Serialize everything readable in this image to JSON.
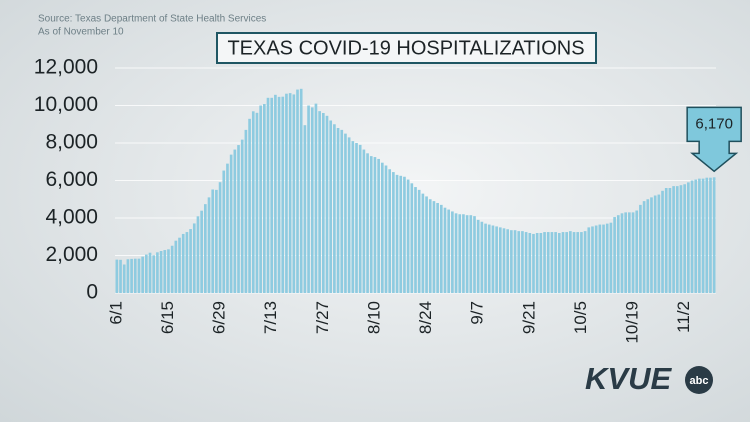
{
  "source": "Source: Texas Department of State Health Services",
  "as_of": "As of November 10",
  "logo": {
    "text": "KVUE",
    "network": "abc"
  },
  "chart_data": {
    "type": "bar",
    "title": "TEXAS COVID-19 HOSPITALIZATIONS",
    "color": "#8ecbe0",
    "grid": true,
    "ylim": [
      0,
      12000
    ],
    "yticks": [
      0,
      {
        "value": 2000,
        "label": "2,000"
      },
      {
        "value": 4000,
        "label": "4,000"
      },
      {
        "value": 6000,
        "label": "6,000"
      },
      {
        "value": 8000,
        "label": "8,000"
      },
      {
        "value": 10000,
        "label": "10,000"
      },
      {
        "value": 12000,
        "label": "12,000"
      }
    ],
    "categories": [
      "6/1",
      null,
      null,
      null,
      null,
      null,
      null,
      null,
      null,
      null,
      null,
      null,
      null,
      null,
      "6/15",
      null,
      null,
      null,
      null,
      null,
      null,
      null,
      null,
      null,
      null,
      null,
      null,
      null,
      "6/29",
      null,
      null,
      null,
      null,
      null,
      null,
      null,
      null,
      null,
      null,
      null,
      null,
      null,
      "7/13",
      null,
      null,
      null,
      null,
      null,
      null,
      null,
      null,
      null,
      null,
      null,
      null,
      null,
      "7/27",
      null,
      null,
      null,
      null,
      null,
      null,
      null,
      null,
      null,
      null,
      null,
      null,
      null,
      "8/10",
      null,
      null,
      null,
      null,
      null,
      null,
      null,
      null,
      null,
      null,
      null,
      null,
      null,
      "8/24",
      null,
      null,
      null,
      null,
      null,
      null,
      null,
      null,
      null,
      null,
      null,
      null,
      null,
      "9/7",
      null,
      null,
      null,
      null,
      null,
      null,
      null,
      null,
      null,
      null,
      null,
      null,
      null,
      "9/21",
      null,
      null,
      null,
      null,
      null,
      null,
      null,
      null,
      null,
      null,
      null,
      null,
      null,
      "10/5",
      null,
      null,
      null,
      null,
      null,
      null,
      null,
      null,
      null,
      null,
      null,
      null,
      null,
      "10/19",
      null,
      null,
      null,
      null,
      null,
      null,
      null,
      null,
      null,
      null,
      null,
      null,
      null,
      "11/2",
      null,
      null,
      null,
      null,
      null,
      null,
      null,
      null
    ],
    "values": [
      1780,
      1770,
      1520,
      1800,
      1820,
      1830,
      1830,
      1940,
      2050,
      2150,
      2010,
      2170,
      2240,
      2290,
      2330,
      2520,
      2790,
      2950,
      3150,
      3250,
      3410,
      3710,
      4090,
      4390,
      4740,
      5100,
      5520,
      5500,
      5910,
      6530,
      6900,
      7380,
      7650,
      7890,
      8180,
      8700,
      9290,
      9690,
      9610,
      10000,
      10080,
      10410,
      10410,
      10570,
      10460,
      10470,
      10630,
      10660,
      10590,
      10850,
      10890,
      8950,
      10000,
      9900,
      10100,
      9700,
      9600,
      9450,
      9200,
      9000,
      8800,
      8700,
      8500,
      8300,
      8100,
      8000,
      7900,
      7650,
      7450,
      7300,
      7250,
      7150,
      6950,
      6800,
      6600,
      6450,
      6300,
      6250,
      6200,
      6050,
      5850,
      5650,
      5500,
      5300,
      5150,
      5000,
      4900,
      4800,
      4700,
      4550,
      4450,
      4350,
      4250,
      4200,
      4200,
      4150,
      4150,
      4100,
      3900,
      3800,
      3700,
      3650,
      3600,
      3550,
      3500,
      3450,
      3400,
      3350,
      3350,
      3300,
      3300,
      3250,
      3200,
      3150,
      3200,
      3200,
      3250,
      3250,
      3250,
      3250,
      3200,
      3250,
      3250,
      3300,
      3250,
      3250,
      3250,
      3300,
      3500,
      3550,
      3600,
      3650,
      3650,
      3700,
      3750,
      4050,
      4150,
      4250,
      4300,
      4300,
      4300,
      4400,
      4700,
      4900,
      5000,
      5100,
      5200,
      5250,
      5450,
      5600,
      5600,
      5700,
      5700,
      5750,
      5800,
      5900,
      6000,
      6050,
      6100,
      6100,
      6150,
      6150,
      6170
    ],
    "value_labels": [
      null,
      null,
      null,
      null,
      null,
      null,
      null,
      null,
      null,
      null,
      null,
      null,
      null,
      null,
      null,
      null,
      null,
      null,
      null,
      null,
      null,
      null,
      null,
      null,
      null,
      null,
      null,
      null,
      null,
      null,
      null,
      null,
      null,
      null,
      null,
      null,
      null,
      null,
      null,
      null,
      null,
      null,
      null,
      null,
      null,
      null,
      null,
      null,
      null,
      null,
      null,
      null,
      null,
      null,
      null,
      null,
      null,
      null,
      null,
      null,
      null,
      null,
      null,
      null,
      null,
      null,
      null,
      null,
      null,
      null,
      null,
      null,
      null,
      null,
      null,
      null,
      null,
      null,
      null,
      null,
      null,
      null,
      null,
      null,
      null,
      null,
      null,
      null,
      null,
      null,
      null,
      null,
      null,
      null,
      null,
      null,
      null,
      null,
      null,
      null,
      null,
      null,
      null,
      null,
      null,
      null,
      null,
      null,
      null,
      null,
      null,
      null,
      null,
      null,
      null,
      null,
      null,
      null,
      null,
      null,
      null,
      null,
      null,
      null,
      null,
      null,
      null,
      null,
      null,
      null,
      null,
      null,
      null,
      null,
      null,
      null,
      null,
      null,
      null,
      null,
      null,
      null,
      null,
      null,
      null,
      null,
      null,
      null,
      null,
      null,
      null,
      null,
      null,
      null,
      null,
      null,
      null,
      null,
      null,
      null,
      null,
      null,
      "6,170"
    ]
  }
}
